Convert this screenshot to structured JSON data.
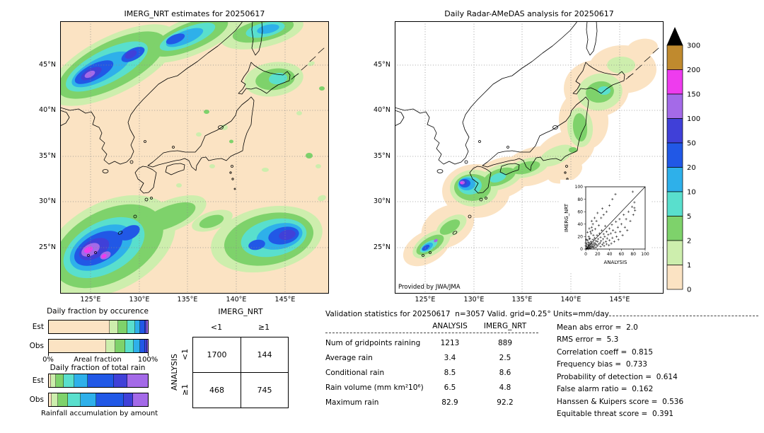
{
  "figure": {
    "background": "#ffffff"
  },
  "maps": {
    "left_title": "IMERG_NRT estimates for 20250617",
    "right_title": "Daily Radar-AMeDAS analysis for 20250617",
    "credit": "Provided by JWA/JMA",
    "lat_ticks": [
      "45°N",
      "40°N",
      "35°N",
      "30°N",
      "25°N"
    ],
    "lon_ticks": [
      "125°E",
      "130°E",
      "135°E",
      "140°E",
      "145°E"
    ]
  },
  "colorbar": {
    "units": "mm/day",
    "tick_labels": [
      "300",
      "200",
      "150",
      "100",
      "50",
      "20",
      "10",
      "5",
      "2",
      "1",
      "0"
    ],
    "colors_low_to_high": [
      "#fbe3c3",
      "#cdeead",
      "#7ed26b",
      "#59dfcd",
      "#2eb0ea",
      "#2158e6",
      "#4040d8",
      "#a46ae8",
      "#ee3cee",
      "#c08a2e"
    ],
    "overflow_color": "#000000"
  },
  "chart_data": [
    {
      "type": "heatmap",
      "id": "imerg-map",
      "title": "IMERG_NRT estimates for 20250617",
      "x_ticks": [
        "125°E",
        "130°E",
        "135°E",
        "140°E",
        "145°E"
      ],
      "y_ticks": [
        "45°N",
        "40°N",
        "35°N",
        "30°N",
        "25°N"
      ],
      "units": "mm/day",
      "color_levels": [
        0,
        1,
        2,
        5,
        10,
        20,
        50,
        100,
        150,
        200,
        300
      ]
    },
    {
      "type": "heatmap",
      "id": "radar-amedas-map",
      "title": "Daily Radar-AMeDAS analysis for 20250617",
      "credit": "Provided by JWA/JMA",
      "x_ticks": [
        "125°E",
        "130°E",
        "135°E",
        "140°E",
        "145°E"
      ],
      "y_ticks": [
        "45°N",
        "40°N",
        "35°N",
        "30°N",
        "25°N"
      ],
      "units": "mm/day",
      "color_levels": [
        0,
        1,
        2,
        5,
        10,
        20,
        50,
        100,
        150,
        200,
        300
      ]
    },
    {
      "type": "scatter",
      "id": "inset-scatter",
      "xlabel": "ANALYSIS",
      "ylabel": "IMERG_NRT",
      "xlim": [
        0,
        100
      ],
      "ylim": [
        0,
        100
      ],
      "tick_labels": [
        "0",
        "20",
        "40",
        "60",
        "80",
        "100"
      ],
      "identity_line": true,
      "points": [
        [
          1,
          0
        ],
        [
          2,
          1
        ],
        [
          2,
          4
        ],
        [
          3,
          1
        ],
        [
          3,
          2
        ],
        [
          4,
          6
        ],
        [
          4,
          0
        ],
        [
          5,
          3
        ],
        [
          5,
          8
        ],
        [
          6,
          2
        ],
        [
          6,
          5
        ],
        [
          7,
          1
        ],
        [
          7,
          10
        ],
        [
          8,
          4
        ],
        [
          8,
          7
        ],
        [
          9,
          2
        ],
        [
          9,
          12
        ],
        [
          10,
          5
        ],
        [
          10,
          9
        ],
        [
          11,
          3
        ],
        [
          12,
          7
        ],
        [
          12,
          15
        ],
        [
          13,
          4
        ],
        [
          14,
          10
        ],
        [
          14,
          2
        ],
        [
          15,
          6
        ],
        [
          15,
          18
        ],
        [
          16,
          9
        ],
        [
          17,
          3
        ],
        [
          17,
          13
        ],
        [
          18,
          7
        ],
        [
          19,
          22
        ],
        [
          20,
          5
        ],
        [
          20,
          12
        ],
        [
          21,
          16
        ],
        [
          22,
          8
        ],
        [
          23,
          25
        ],
        [
          24,
          10
        ],
        [
          25,
          4
        ],
        [
          25,
          19
        ],
        [
          26,
          13
        ],
        [
          27,
          30
        ],
        [
          28,
          7
        ],
        [
          29,
          16
        ],
        [
          30,
          10
        ],
        [
          30,
          24
        ],
        [
          31,
          5
        ],
        [
          32,
          20
        ],
        [
          33,
          37
        ],
        [
          34,
          12
        ],
        [
          35,
          8
        ],
        [
          35,
          28
        ],
        [
          36,
          17
        ],
        [
          38,
          23
        ],
        [
          39,
          6
        ],
        [
          40,
          14
        ],
        [
          40,
          33
        ],
        [
          42,
          25
        ],
        [
          43,
          9
        ],
        [
          44,
          39
        ],
        [
          45,
          18
        ],
        [
          46,
          30
        ],
        [
          48,
          12
        ],
        [
          50,
          27
        ],
        [
          51,
          44
        ],
        [
          52,
          20
        ],
        [
          54,
          35
        ],
        [
          55,
          15
        ],
        [
          57,
          48
        ],
        [
          58,
          28
        ],
        [
          60,
          40
        ],
        [
          62,
          22
        ],
        [
          64,
          55
        ],
        [
          66,
          35
        ],
        [
          68,
          48
        ],
        [
          70,
          30
        ],
        [
          72,
          60
        ],
        [
          75,
          45
        ],
        [
          78,
          68
        ],
        [
          80,
          55
        ],
        [
          82,
          75
        ],
        [
          83,
          62
        ],
        [
          2,
          8
        ],
        [
          3,
          14
        ],
        [
          5,
          20
        ],
        [
          7,
          17
        ],
        [
          9,
          25
        ],
        [
          11,
          30
        ],
        [
          13,
          22
        ],
        [
          4,
          11
        ],
        [
          6,
          16
        ],
        [
          8,
          28
        ],
        [
          10,
          35
        ],
        [
          12,
          40
        ],
        [
          16,
          32
        ],
        [
          18,
          45
        ],
        [
          22,
          38
        ],
        [
          26,
          50
        ],
        [
          30,
          55
        ],
        [
          35,
          60
        ],
        [
          15,
          50
        ],
        [
          20,
          58
        ],
        [
          28,
          65
        ],
        [
          40,
          70
        ],
        [
          45,
          80
        ],
        [
          50,
          88
        ],
        [
          10,
          45
        ],
        [
          6,
          33
        ],
        [
          3,
          27
        ],
        [
          1,
          15
        ],
        [
          0,
          5
        ],
        [
          0,
          10
        ],
        [
          82,
          66
        ],
        [
          79,
          92
        ]
      ]
    },
    {
      "type": "bar",
      "id": "occurrence-bars",
      "variant": "stacked-horizontal",
      "title": "Daily fraction by occurence",
      "categories": [
        "Est",
        "Obs"
      ],
      "xlabel": "Areal fraction",
      "x_min_label": "0%",
      "x_max_label": "100%",
      "est_fractions": [
        0.615,
        0.085,
        0.09,
        0.08,
        0.055,
        0.045,
        0.018,
        0.012
      ],
      "obs_fractions": [
        0.58,
        0.09,
        0.1,
        0.09,
        0.065,
        0.05,
        0.015,
        0.01
      ]
    },
    {
      "type": "bar",
      "id": "total-rain-bars",
      "variant": "stacked-horizontal",
      "title": "Daily fraction of total rain",
      "categories": [
        "Est",
        "Obs"
      ],
      "caption": "Rainfall accumulation by amount",
      "est_fractions": [
        0.02,
        0.05,
        0.08,
        0.105,
        0.135,
        0.27,
        0.13,
        0.21
      ],
      "obs_fractions": [
        0.03,
        0.065,
        0.1,
        0.125,
        0.16,
        0.275,
        0.095,
        0.15
      ]
    },
    {
      "type": "table",
      "id": "contingency-table",
      "col_group": "IMERG_NRT",
      "row_group": "ANALYSIS",
      "col_labels": [
        "<1",
        "≥1"
      ],
      "row_labels": [
        "<1",
        "≥1"
      ],
      "values": [
        [
          "1700",
          "144"
        ],
        [
          "468",
          "745"
        ]
      ]
    },
    {
      "type": "table",
      "id": "validation-stats",
      "title": "Validation statistics for 20250617  n=3057 Valid. grid=0.25° Units=mm/day",
      "col_headers": [
        "ANALYSIS",
        "IMERG_NRT"
      ],
      "rows": [
        {
          "label": "Num of gridpoints raining",
          "values": [
            "1213",
            "889"
          ]
        },
        {
          "label": "Average rain",
          "values": [
            "3.4",
            "2.5"
          ]
        },
        {
          "label": "Conditional rain",
          "values": [
            "8.5",
            "8.6"
          ]
        },
        {
          "label": "Rain volume (mm km²10⁶)",
          "values": [
            "6.5",
            "4.8"
          ]
        },
        {
          "label": "Maximum rain",
          "values": [
            "82.9",
            "92.2"
          ]
        }
      ],
      "metrics": [
        {
          "label": "Mean abs error",
          "value": "2.0"
        },
        {
          "label": "RMS error",
          "value": "5.3"
        },
        {
          "label": "Correlation coeff",
          "value": "0.815"
        },
        {
          "label": "Frequency bias",
          "value": "0.733"
        },
        {
          "label": "Probability of detection",
          "value": "0.614"
        },
        {
          "label": "False alarm ratio",
          "value": "0.162"
        },
        {
          "label": "Hanssen & Kuipers score",
          "value": "0.536"
        },
        {
          "label": "Equitable threat score",
          "value": "0.391"
        }
      ]
    }
  ]
}
